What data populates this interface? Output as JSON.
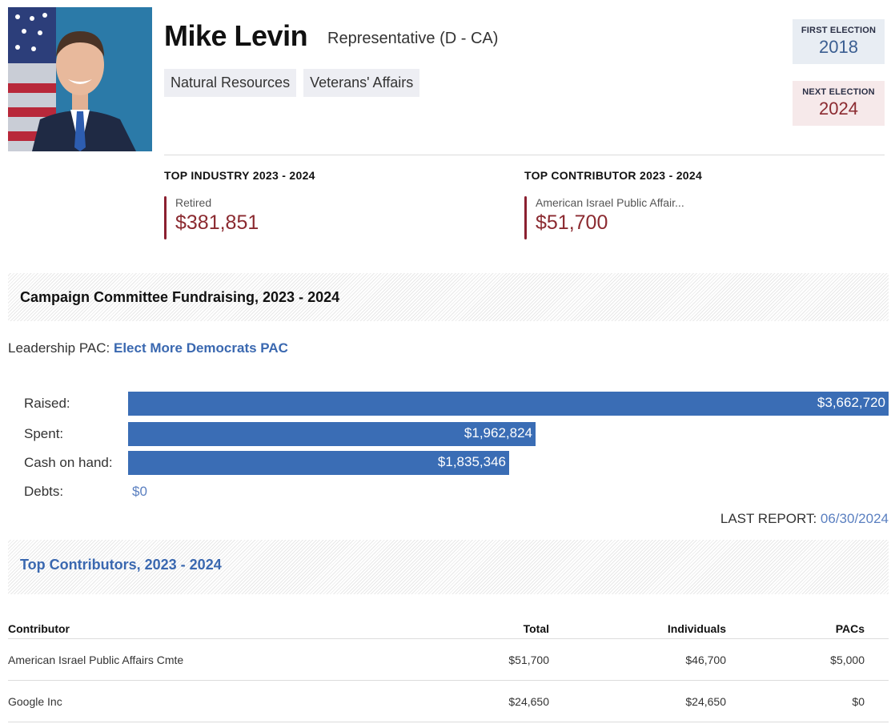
{
  "profile": {
    "name": "Mike Levin",
    "role": "Representative (D - CA)",
    "committees": [
      "Natural Resources",
      "Veterans' Affairs"
    ]
  },
  "elections": {
    "first_label": "FIRST ELECTION",
    "first_value": "2018",
    "next_label": "NEXT ELECTION",
    "next_value": "2024"
  },
  "top_industry": {
    "heading": "TOP INDUSTRY 2023 - 2024",
    "name": "Retired",
    "amount": "$381,851"
  },
  "top_contributor": {
    "heading": "TOP CONTRIBUTOR 2023 - 2024",
    "name": "American Israel Public Affair...",
    "amount": "$51,700"
  },
  "fundraising": {
    "title": "Campaign Committee Fundraising, 2023 - 2024",
    "pac_label": "Leadership PAC:",
    "pac_name": "Elect More Democrats PAC",
    "rows": [
      {
        "label": "Raised:",
        "value": "$3,662,720",
        "amount": 3662720
      },
      {
        "label": "Spent:",
        "value": "$1,962,824",
        "amount": 1962824
      },
      {
        "label": "Cash on hand:",
        "value": "$1,835,346",
        "amount": 1835346
      },
      {
        "label": "Debts:",
        "value": "$0",
        "amount": 0
      }
    ],
    "last_report_label": "LAST REPORT:",
    "last_report_date": "06/30/2024"
  },
  "contributors": {
    "title": "Top Contributors, 2023 - 2024",
    "headers": {
      "contributor": "Contributor",
      "total": "Total",
      "individuals": "Individuals",
      "pacs": "PACs"
    },
    "rows": [
      {
        "contributor": "American Israel Public Affairs Cmte",
        "total": "$51,700",
        "individuals": "$46,700",
        "pacs": "$5,000"
      },
      {
        "contributor": "Google Inc",
        "total": "$24,650",
        "individuals": "$24,650",
        "pacs": "$0"
      }
    ]
  },
  "colors": {
    "accent_blue": "#3a6db5",
    "accent_red": "#8b2a30"
  }
}
